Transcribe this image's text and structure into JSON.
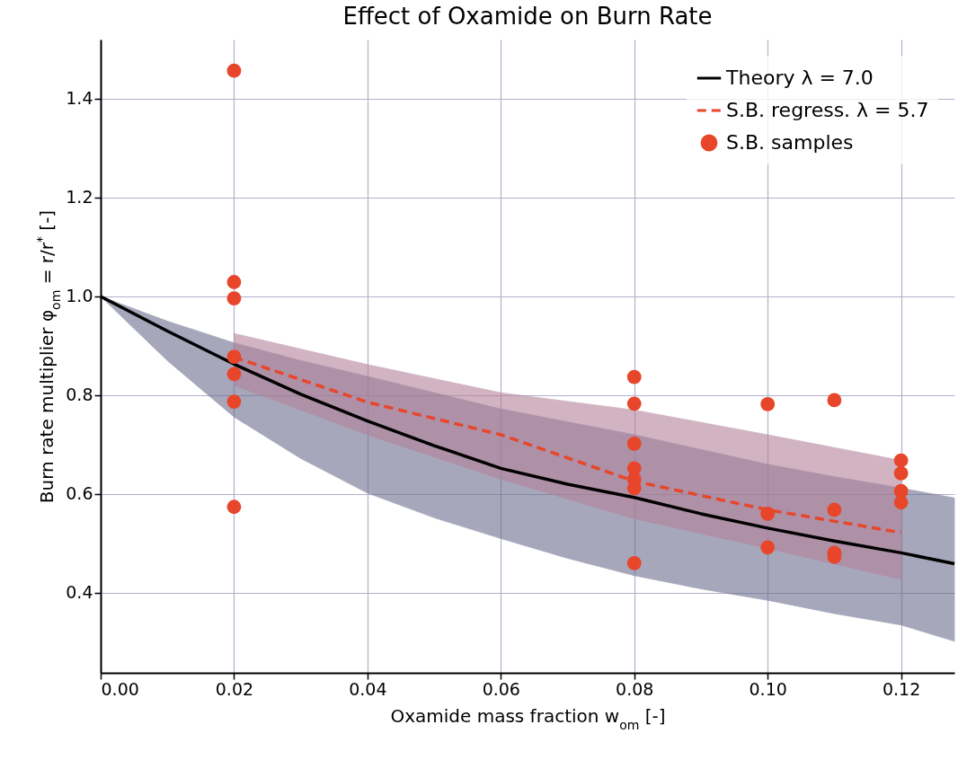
{
  "chart_data": {
    "type": "line",
    "title": "Effect of Oxamide on Burn Rate",
    "xlabel": "Oxamide mass fraction w$_{om}$ [-]",
    "ylabel": "Burn rate multiplier φ$_{om}$ = r/r$^{*}$ [-]",
    "xlim": [
      0,
      0.128
    ],
    "ylim": [
      0.238,
      1.52
    ],
    "xticks": [
      {
        "value": 0,
        "label": "0.00"
      },
      {
        "value": 0.02,
        "label": "0.02"
      },
      {
        "value": 0.04,
        "label": "0.04"
      },
      {
        "value": 0.06,
        "label": "0.06"
      },
      {
        "value": 0.08,
        "label": "0.08"
      },
      {
        "value": 0.1,
        "label": "0.10"
      },
      {
        "value": 0.12,
        "label": "0.12"
      }
    ],
    "yticks": [
      0.4,
      0.6,
      0.8,
      {
        "value": 1,
        "label": "1.0"
      },
      1.2,
      1.4
    ],
    "grid": true,
    "legend": "top right",
    "series": [
      {
        "name": "Theory λ = 7.0",
        "color": "#000000",
        "line_style": "solid",
        "marker": "none",
        "x": [
          0,
          0.01,
          0.02,
          0.03,
          0.04,
          0.05,
          0.06,
          0.07,
          0.08,
          0.09,
          0.1,
          0.11,
          0.12,
          0.128
        ],
        "values": [
          1,
          0.93,
          0.863,
          0.802,
          0.748,
          0.698,
          0.652,
          0.62,
          0.593,
          0.56,
          0.531,
          0.505,
          0.481,
          0.459
        ],
        "lower": [
          1,
          0.87,
          0.756,
          0.672,
          0.602,
          0.552,
          0.51,
          0.47,
          0.435,
          0.408,
          0.385,
          0.358,
          0.335,
          0.302
        ],
        "upper": [
          1,
          0.95,
          0.906,
          0.87,
          0.838,
          0.805,
          0.772,
          0.746,
          0.72,
          0.69,
          0.66,
          0.635,
          0.612,
          0.592
        ]
      },
      {
        "name": "S.B. regress. λ = 5.7",
        "type": "line",
        "color": "#e8462a",
        "line_style": "dashed",
        "marker": "none",
        "x": [
          0.02,
          0.04,
          0.06,
          0.08,
          0.1,
          0.12
        ],
        "values": [
          0.877,
          0.786,
          0.72,
          0.626,
          0.568,
          0.522
        ],
        "lower": [
          0.82,
          0.72,
          0.63,
          0.55,
          0.49,
          0.427
        ],
        "upper": [
          0.925,
          0.862,
          0.805,
          0.77,
          0.72,
          0.668
        ]
      },
      {
        "name": "S.B. samples",
        "type": "scatter",
        "color": "#e8462a",
        "marker": "circle",
        "x": [
          0.02,
          0.02,
          0.02,
          0.02,
          0.02,
          0.02,
          0.02,
          0.08,
          0.08,
          0.08,
          0.08,
          0.08,
          0.08,
          0.08,
          0.1,
          0.1,
          0.1,
          0.11,
          0.11,
          0.11,
          0.11,
          0.12,
          0.12,
          0.12,
          0.12
        ],
        "values": [
          1.457,
          1.029,
          0.996,
          0.878,
          0.843,
          0.787,
          0.574,
          0.837,
          0.783,
          0.702,
          0.652,
          0.63,
          0.612,
          0.46,
          0.782,
          0.56,
          0.492,
          0.79,
          0.568,
          0.481,
          0.473,
          0.668,
          0.642,
          0.606,
          0.583
        ]
      }
    ]
  }
}
